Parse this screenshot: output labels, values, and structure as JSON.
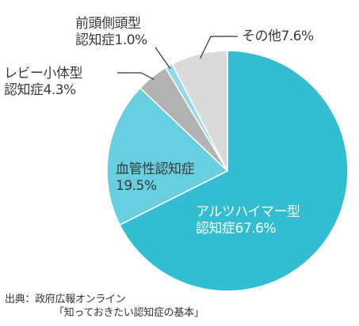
{
  "chart_data": {
    "type": "pie",
    "slices": [
      {
        "name_line1": "アルツハイマー型",
        "name_line2": "認知症",
        "value_label": "67.6%",
        "value": 67.6,
        "color": "#33bdd1"
      },
      {
        "name_line1": "血管性認知症",
        "name_line2": "",
        "value_label": "19.5%",
        "value": 19.5,
        "color": "#67cfdf"
      },
      {
        "name_line1": "レビー小体型",
        "name_line2": "認知症",
        "value_label": "4.3%",
        "value": 4.3,
        "color": "#b3b3b3"
      },
      {
        "name_line1": "前頭側頭型",
        "name_line2": "認知症",
        "value_label": "1.0%",
        "value": 1.0,
        "color": "#8fdce8"
      },
      {
        "name_line1": "その他",
        "name_line2": "",
        "value_label": "7.6%",
        "value": 7.6,
        "color": "#dadada"
      }
    ]
  },
  "source": {
    "line1": "出典：政府広報オンライン",
    "line2": "「知っておきたい認知症の基本」"
  }
}
